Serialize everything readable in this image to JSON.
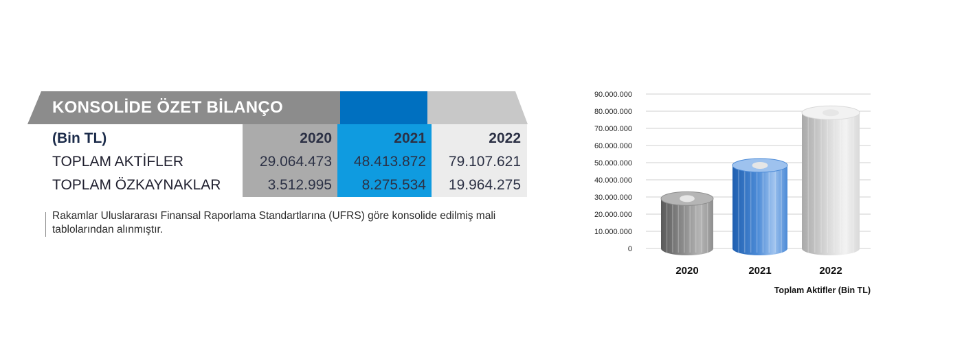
{
  "banner": {
    "title": "KONSOLİDE ÖZET BİLANÇO"
  },
  "table": {
    "unit_label": "(Bin TL)",
    "years": [
      "2020",
      "2021",
      "2022"
    ],
    "rows": [
      {
        "label": "TOPLAM AKTİFLER",
        "values": [
          "29.064.473",
          "48.413.872",
          "79.107.621"
        ]
      },
      {
        "label": "TOPLAM ÖZKAYNAKLAR",
        "values": [
          "3.512.995",
          "8.275.534",
          "19.964.275"
        ]
      }
    ]
  },
  "note": "Rakamlar Uluslararası Finansal Raporlama Standartlarına (UFRS) göre konsolide edilmiş mali tablolarından alınmıştır.",
  "colors": {
    "banner_gray": "#8c8c8c",
    "banner_blue": "#0070c0",
    "banner_light": "#c8c8c8",
    "col_2020": "#ababab",
    "col_2021": "#0f9be0",
    "col_2022": "#ececec"
  },
  "chart_data": {
    "type": "bar",
    "categories": [
      "2020",
      "2021",
      "2022"
    ],
    "values": [
      29064473,
      48413872,
      79107621
    ],
    "ylim": [
      0,
      90000000
    ],
    "yticks": [
      "0",
      "10.000.000",
      "20.000.000",
      "30.000.000",
      "40.000.000",
      "50.000.000",
      "60.000.000",
      "70.000.000",
      "80.000.000",
      "90.000.000"
    ],
    "title": "",
    "xlabel": "Toplam Aktifler (Bin TL)",
    "ylabel": "",
    "grid": true,
    "bar_colors": [
      "#6e6e6e",
      "#2f6fc4",
      "#c9c9c9"
    ]
  }
}
